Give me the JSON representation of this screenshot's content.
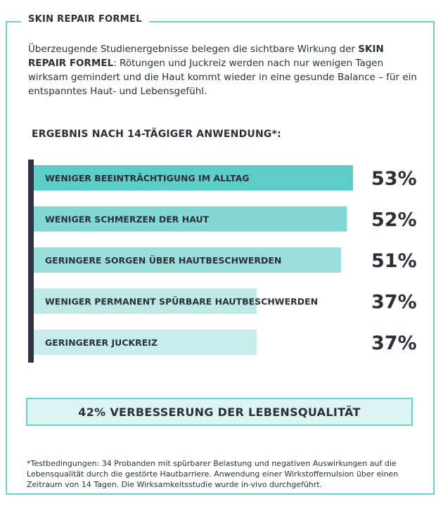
{
  "header": {
    "title": "SKIN REPAIR FORMEL"
  },
  "intro": {
    "part1": "Überzeugende Studienergebnisse belegen die sichtbare Wirkung der ",
    "brand": "SKIN REPAIR FORMEL",
    "part2": ": Rötungen und Juckreiz werden nach nur wenigen Tagen wirksam gemindert und die Haut kommt wieder in eine gesunde Balance – für ein entspanntes Haut- und Lebensgefühl."
  },
  "results_heading": "ERGEBNIS NACH 14-TÄGIGER ANWENDUNG*:",
  "chart_data": {
    "type": "bar",
    "orientation": "horizontal",
    "categories": [
      "WENIGER BEEINTRÄCHTIGUNG IM ALLTAG",
      "WENIGER SCHMERZEN DER HAUT",
      "GERINGERE SORGEN ÜBER HAUTBESCHWERDEN",
      "WENIGER PERMANENT SPÜRBARE HAUTBESCHWERDEN",
      "GERINGERER JUCKREIZ"
    ],
    "values": [
      53,
      52,
      51,
      37,
      37
    ],
    "value_labels": [
      "53%",
      "52%",
      "51%",
      "37%",
      "37%"
    ],
    "colors": [
      "#5ecdca",
      "#83d7d4",
      "#9adeda",
      "#bfe9e6",
      "#c7ecea"
    ]
  },
  "summary": "42% VERBESSERUNG DER LEBENSQUALITÄT",
  "footnote": "*Testbedingungen: 34 Probanden mit spürbarer Belastung und negativen Auswirkungen auf die Lebensqualität durch die gestörte Hautbarriere. Anwendung einer Wirkstoffemulsion über einen Zeitraum von 14 Tagen. Die Wirksamkeitsstudie wurde in-vivo durchgeführt.",
  "colors": {
    "border": "#6ccfcf",
    "axis": "#2e3340",
    "text": "#2b2f38"
  }
}
